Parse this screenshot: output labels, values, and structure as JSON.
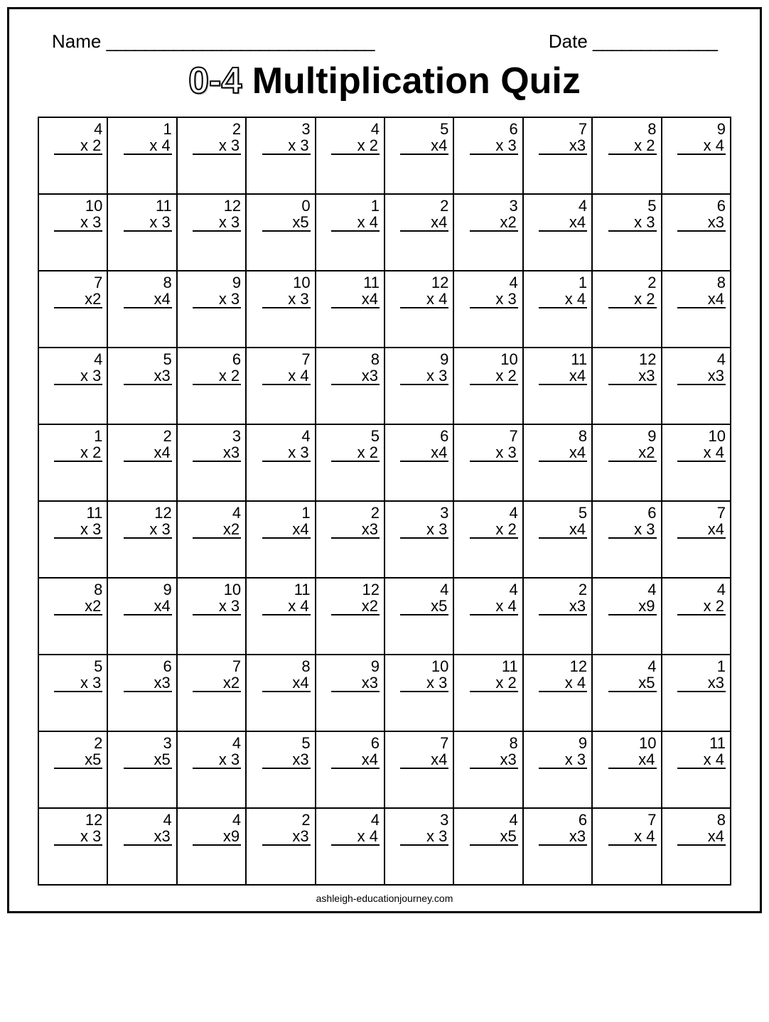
{
  "header": {
    "name_label": "Name",
    "name_blank": "____________________________",
    "date_label": "Date",
    "date_blank": "_____________"
  },
  "title": {
    "prefix": "0-4",
    "rest": " Multiplication Quiz"
  },
  "footer": "ashleigh-educationjourney.com",
  "colors": {
    "border": "#000000",
    "background": "#ffffff"
  },
  "problems": [
    [
      {
        "a": "4",
        "b": "x 2"
      },
      {
        "a": "1",
        "b": "x 4"
      },
      {
        "a": "2",
        "b": "x 3"
      },
      {
        "a": "3",
        "b": "x 3"
      },
      {
        "a": "4",
        "b": "x 2"
      },
      {
        "a": "5",
        "b": "x4"
      },
      {
        "a": "6",
        "b": "x 3"
      },
      {
        "a": "7",
        "b": "x3"
      },
      {
        "a": "8",
        "b": "x 2"
      },
      {
        "a": "9",
        "b": "x 4"
      }
    ],
    [
      {
        "a": "10",
        "b": "x 3"
      },
      {
        "a": "11",
        "b": "x 3"
      },
      {
        "a": "12",
        "b": "x 3"
      },
      {
        "a": "0",
        "b": "x5"
      },
      {
        "a": "1",
        "b": "x 4"
      },
      {
        "a": "2",
        "b": "x4"
      },
      {
        "a": "3",
        "b": "x2"
      },
      {
        "a": "4",
        "b": "x4"
      },
      {
        "a": "5",
        "b": "x 3"
      },
      {
        "a": "6",
        "b": "x3"
      }
    ],
    [
      {
        "a": "7",
        "b": "x2"
      },
      {
        "a": "8",
        "b": "x4"
      },
      {
        "a": "9",
        "b": "x 3"
      },
      {
        "a": "10",
        "b": "x 3"
      },
      {
        "a": "11",
        "b": "x4"
      },
      {
        "a": "12",
        "b": "x 4"
      },
      {
        "a": "4",
        "b": "x 3"
      },
      {
        "a": "1",
        "b": "x 4"
      },
      {
        "a": "2",
        "b": "x 2"
      },
      {
        "a": "8",
        "b": "x4"
      }
    ],
    [
      {
        "a": "4",
        "b": "x 3"
      },
      {
        "a": "5",
        "b": "x3"
      },
      {
        "a": "6",
        "b": "x 2"
      },
      {
        "a": "7",
        "b": "x 4"
      },
      {
        "a": "8",
        "b": "x3"
      },
      {
        "a": "9",
        "b": "x 3"
      },
      {
        "a": "10",
        "b": "x 2"
      },
      {
        "a": "11",
        "b": "x4"
      },
      {
        "a": "12",
        "b": "x3"
      },
      {
        "a": "4",
        "b": "x3"
      }
    ],
    [
      {
        "a": "1",
        "b": "x 2"
      },
      {
        "a": "2",
        "b": "x4"
      },
      {
        "a": "3",
        "b": "x3"
      },
      {
        "a": "4",
        "b": "x 3"
      },
      {
        "a": "5",
        "b": "x 2"
      },
      {
        "a": "6",
        "b": "x4"
      },
      {
        "a": "7",
        "b": "x 3"
      },
      {
        "a": "8",
        "b": "x4"
      },
      {
        "a": "9",
        "b": "x2"
      },
      {
        "a": "10",
        "b": "x 4"
      }
    ],
    [
      {
        "a": "11",
        "b": "x 3"
      },
      {
        "a": "12",
        "b": "x 3"
      },
      {
        "a": "4",
        "b": "x2"
      },
      {
        "a": "1",
        "b": "x4"
      },
      {
        "a": "2",
        "b": "x3"
      },
      {
        "a": "3",
        "b": "x 3"
      },
      {
        "a": "4",
        "b": "x 2"
      },
      {
        "a": "5",
        "b": "x4"
      },
      {
        "a": "6",
        "b": "x 3"
      },
      {
        "a": "7",
        "b": "x4"
      }
    ],
    [
      {
        "a": "8",
        "b": "x2"
      },
      {
        "a": "9",
        "b": "x4"
      },
      {
        "a": "10",
        "b": "x 3"
      },
      {
        "a": "11",
        "b": "x 4"
      },
      {
        "a": "12",
        "b": "x2"
      },
      {
        "a": "4",
        "b": "x5"
      },
      {
        "a": "4",
        "b": "x 4"
      },
      {
        "a": "2",
        "b": "x3"
      },
      {
        "a": "4",
        "b": "x9"
      },
      {
        "a": "4",
        "b": "x 2"
      }
    ],
    [
      {
        "a": "5",
        "b": "x 3"
      },
      {
        "a": "6",
        "b": "x3"
      },
      {
        "a": "7",
        "b": "x2"
      },
      {
        "a": "8",
        "b": "x4"
      },
      {
        "a": "9",
        "b": "x3"
      },
      {
        "a": "10",
        "b": "x 3"
      },
      {
        "a": "11",
        "b": "x 2"
      },
      {
        "a": "12",
        "b": "x 4"
      },
      {
        "a": "4",
        "b": "x5"
      },
      {
        "a": "1",
        "b": "x3"
      }
    ],
    [
      {
        "a": "2",
        "b": "x5"
      },
      {
        "a": "3",
        "b": "x5"
      },
      {
        "a": "4",
        "b": "x 3"
      },
      {
        "a": "5",
        "b": "x3"
      },
      {
        "a": "6",
        "b": "x4"
      },
      {
        "a": "7",
        "b": "x4"
      },
      {
        "a": "8",
        "b": "x3"
      },
      {
        "a": "9",
        "b": "x 3"
      },
      {
        "a": "10",
        "b": "x4"
      },
      {
        "a": "11",
        "b": "x 4"
      }
    ],
    [
      {
        "a": "12",
        "b": "x 3"
      },
      {
        "a": "4",
        "b": "x3"
      },
      {
        "a": "4",
        "b": "x9"
      },
      {
        "a": "2",
        "b": "x3"
      },
      {
        "a": "4",
        "b": "x 4"
      },
      {
        "a": "3",
        "b": "x 3"
      },
      {
        "a": "4",
        "b": "x5"
      },
      {
        "a": "6",
        "b": "x3"
      },
      {
        "a": "7",
        "b": "x 4"
      },
      {
        "a": "8",
        "b": "x4"
      }
    ]
  ]
}
